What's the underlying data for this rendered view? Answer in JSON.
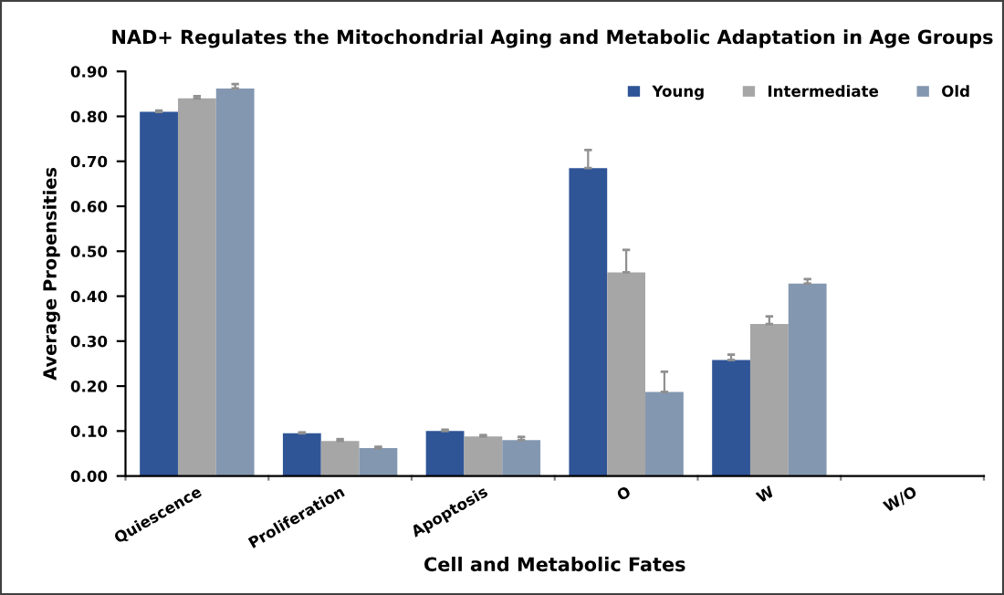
{
  "chart_data": {
    "type": "bar",
    "title": "NAD+ Regulates the Mitochondrial Aging and Metabolic Adaptation in Age Groups",
    "xlabel": "Cell and Metabolic Fates",
    "ylabel": "Average Propensities",
    "categories": [
      "Quiescence",
      "Proliferation",
      "Apoptosis",
      "O",
      "W",
      "W/O"
    ],
    "series": [
      {
        "name": "Young",
        "color": "#2f5597",
        "values": [
          0.81,
          0.095,
          0.1,
          0.685,
          0.258,
          null
        ],
        "errors": [
          0.003,
          0.002,
          0.003,
          0.04,
          0.012,
          null
        ]
      },
      {
        "name": "Intermediate",
        "color": "#a6a6a6",
        "values": [
          0.84,
          0.078,
          0.088,
          0.453,
          0.338,
          null
        ],
        "errors": [
          0.005,
          0.004,
          0.003,
          0.05,
          0.017,
          null
        ]
      },
      {
        "name": "Old",
        "color": "#8497b0",
        "values": [
          0.862,
          0.062,
          0.08,
          0.187,
          0.428,
          null
        ],
        "errors": [
          0.01,
          0.003,
          0.007,
          0.045,
          0.01,
          null
        ]
      }
    ],
    "ylim": [
      0,
      0.9
    ],
    "yticks": [
      {
        "value": 0,
        "label": "0.00"
      },
      {
        "value": 0.1,
        "label": "0.10"
      },
      {
        "value": 0.2,
        "label": "0.20"
      },
      {
        "value": 0.3,
        "label": "0.30"
      },
      {
        "value": 0.4,
        "label": "0.40"
      },
      {
        "value": 0.5,
        "label": "0.50"
      },
      {
        "value": 0.6,
        "label": "0.60"
      },
      {
        "value": 0.7,
        "label": "0.70"
      },
      {
        "value": 0.8,
        "label": "0.80"
      },
      {
        "value": 0.9,
        "label": "0.90"
      }
    ],
    "grid": false,
    "legend": "top right"
  }
}
